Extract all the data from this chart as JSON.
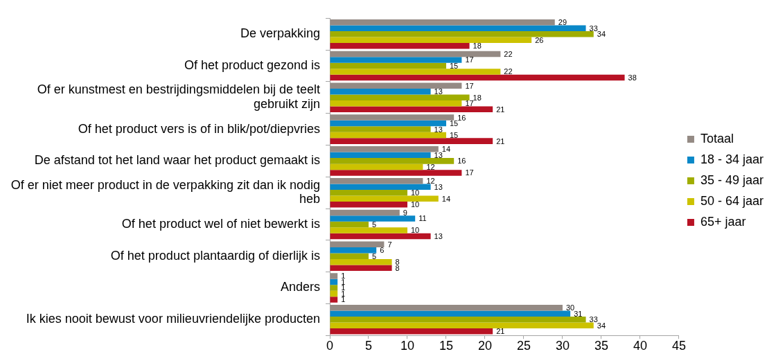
{
  "chart_data": {
    "type": "bar",
    "orientation": "horizontal",
    "categories": [
      "De verpakking",
      "Of het product gezond is",
      "Of er kunstmest en bestrijdingsmiddelen bij de teelt gebruikt zijn",
      "Of het product vers is of in blik/pot/diepvries",
      "De afstand tot het land waar het product gemaakt is",
      "Of er niet meer product in de verpakking zit dan ik nodig heb",
      "Of het product wel of niet bewerkt is",
      "Of het product plantaardig of dierlijk is",
      "Anders",
      "Ik kies nooit bewust voor milieuvriendelijke producten"
    ],
    "series": [
      {
        "name": "Totaal",
        "color": "#948a84",
        "values": [
          29,
          22,
          17,
          16,
          14,
          12,
          9,
          7,
          1,
          30
        ]
      },
      {
        "name": "18 - 34 jaar",
        "color": "#0a88c8",
        "values": [
          33,
          17,
          13,
          15,
          13,
          13,
          11,
          6,
          1,
          31
        ]
      },
      {
        "name": "35 - 49 jaar",
        "color": "#a0ad00",
        "values": [
          34,
          15,
          18,
          13,
          16,
          10,
          5,
          5,
          1,
          33
        ]
      },
      {
        "name": "50 - 64 jaar",
        "color": "#ccc200",
        "values": [
          26,
          22,
          17,
          15,
          12,
          14,
          10,
          8,
          1,
          34
        ]
      },
      {
        "name": "65+ jaar",
        "color": "#b81224",
        "values": [
          18,
          38,
          21,
          21,
          17,
          10,
          13,
          8,
          1,
          21
        ]
      }
    ],
    "xlim": [
      0,
      45
    ],
    "xticks": [
      0,
      5,
      10,
      15,
      20,
      25,
      30,
      35,
      40,
      45
    ],
    "data_labels": true,
    "legend": "right"
  }
}
